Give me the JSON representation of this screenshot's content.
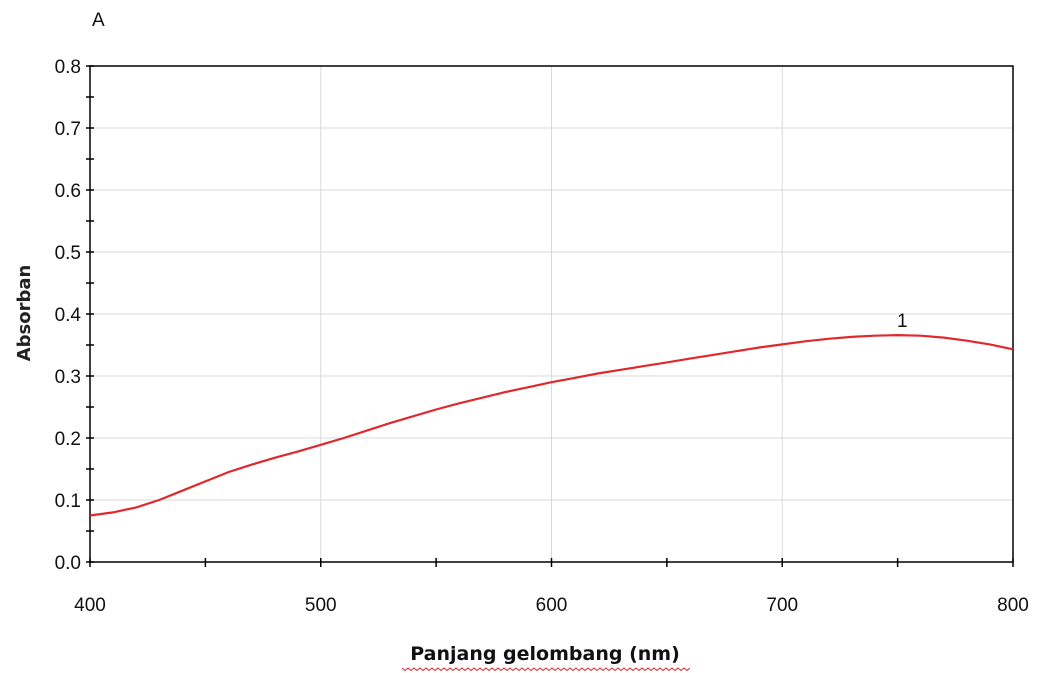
{
  "chart_data": {
    "type": "line",
    "y_unit_label": "A",
    "ylabel": "Absorban",
    "xlabel": "Panjang gelombang (nm)",
    "xlim": [
      400,
      800
    ],
    "ylim": [
      0.0,
      0.8
    ],
    "x_ticks": [
      "400",
      "500",
      "600",
      "700",
      "800"
    ],
    "y_ticks": [
      "0.0",
      "0.1",
      "0.2",
      "0.3",
      "0.4",
      "0.5",
      "0.6",
      "0.7",
      "0.8"
    ],
    "grid": true,
    "line_color": "#e0282d",
    "series": [
      {
        "name": "1",
        "x": [
          400,
          410,
          420,
          430,
          440,
          450,
          460,
          470,
          480,
          490,
          500,
          510,
          520,
          530,
          540,
          550,
          560,
          570,
          580,
          590,
          600,
          610,
          620,
          630,
          640,
          650,
          660,
          670,
          680,
          690,
          700,
          710,
          720,
          730,
          740,
          750,
          760,
          770,
          780,
          790,
          800
        ],
        "y": [
          0.075,
          0.08,
          0.088,
          0.1,
          0.115,
          0.13,
          0.145,
          0.157,
          0.168,
          0.178,
          0.189,
          0.2,
          0.212,
          0.224,
          0.235,
          0.246,
          0.256,
          0.265,
          0.274,
          0.282,
          0.29,
          0.297,
          0.304,
          0.31,
          0.316,
          0.322,
          0.328,
          0.334,
          0.34,
          0.346,
          0.351,
          0.356,
          0.36,
          0.363,
          0.365,
          0.366,
          0.365,
          0.362,
          0.357,
          0.351,
          0.343
        ]
      }
    ],
    "annotation": {
      "text": "1",
      "x": 752,
      "y": 0.366
    }
  }
}
